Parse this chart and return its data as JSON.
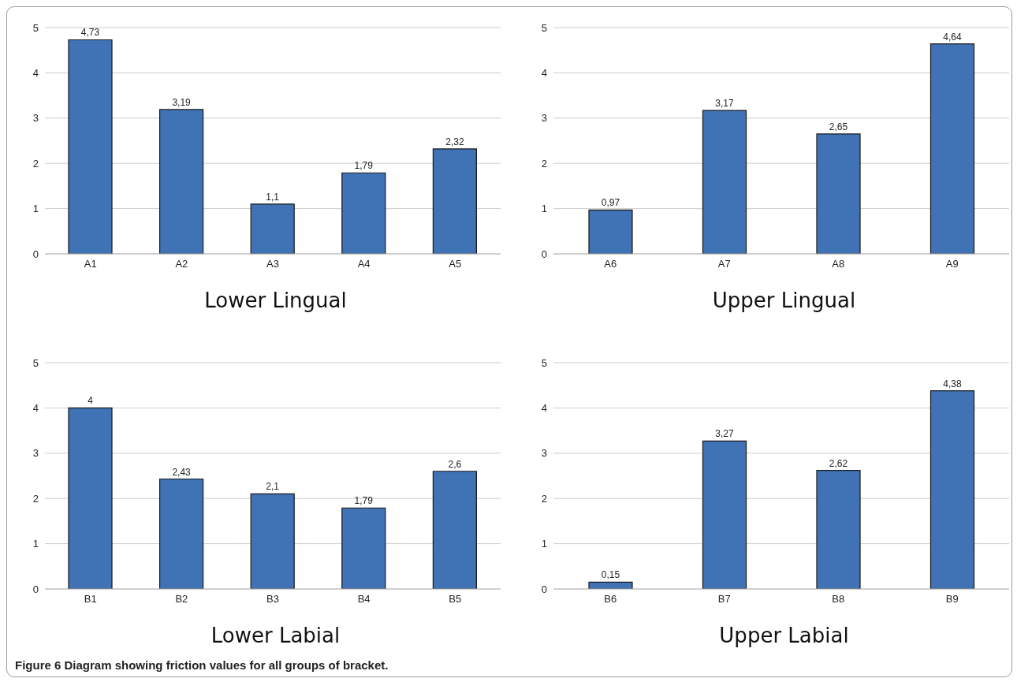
{
  "chart_data": [
    {
      "type": "bar",
      "title": "Lower Lingual",
      "categories": [
        "A1",
        "A2",
        "A3",
        "A4",
        "A5"
      ],
      "values": [
        4.73,
        3.19,
        1.1,
        1.79,
        2.32
      ],
      "value_labels": [
        "4,73",
        "3,19",
        "1,1",
        "1,79",
        "2,32"
      ],
      "color": "#3f73b6",
      "ylim": [
        0,
        5
      ],
      "yticks": [
        0,
        1,
        2,
        3,
        4,
        5
      ],
      "grid": "y"
    },
    {
      "type": "bar",
      "title": "Upper Lingual",
      "categories": [
        "A6",
        "A7",
        "A8",
        "A9"
      ],
      "values": [
        0.97,
        3.17,
        2.65,
        4.64
      ],
      "value_labels": [
        "0,97",
        "3,17",
        "2,65",
        "4,64"
      ],
      "color": "#3f73b6",
      "ylim": [
        0,
        5
      ],
      "yticks": [
        0,
        1,
        2,
        3,
        4,
        5
      ],
      "grid": "y"
    },
    {
      "type": "bar",
      "title": "Lower Labial",
      "categories": [
        "B1",
        "B2",
        "B3",
        "B4",
        "B5"
      ],
      "values": [
        4,
        2.43,
        2.1,
        1.79,
        2.6
      ],
      "value_labels": [
        "4",
        "2,43",
        "2,1",
        "1,79",
        "2,6"
      ],
      "color": "#3f73b6",
      "ylim": [
        0,
        5
      ],
      "yticks": [
        0,
        1,
        2,
        3,
        4,
        5
      ],
      "grid": "y"
    },
    {
      "type": "bar",
      "title": "Upper Labial",
      "categories": [
        "B6",
        "B7",
        "B8",
        "B9"
      ],
      "values": [
        0.15,
        3.27,
        2.62,
        4.38
      ],
      "value_labels": [
        "0,15",
        "3,27",
        "2,62",
        "4,38"
      ],
      "color": "#3f73b6",
      "ylim": [
        0,
        5
      ],
      "yticks": [
        0,
        1,
        2,
        3,
        4,
        5
      ],
      "grid": "y",
      "annotations": [
        "Figure 6 Diagram showing friction values for all groups of bracket."
      ]
    }
  ]
}
